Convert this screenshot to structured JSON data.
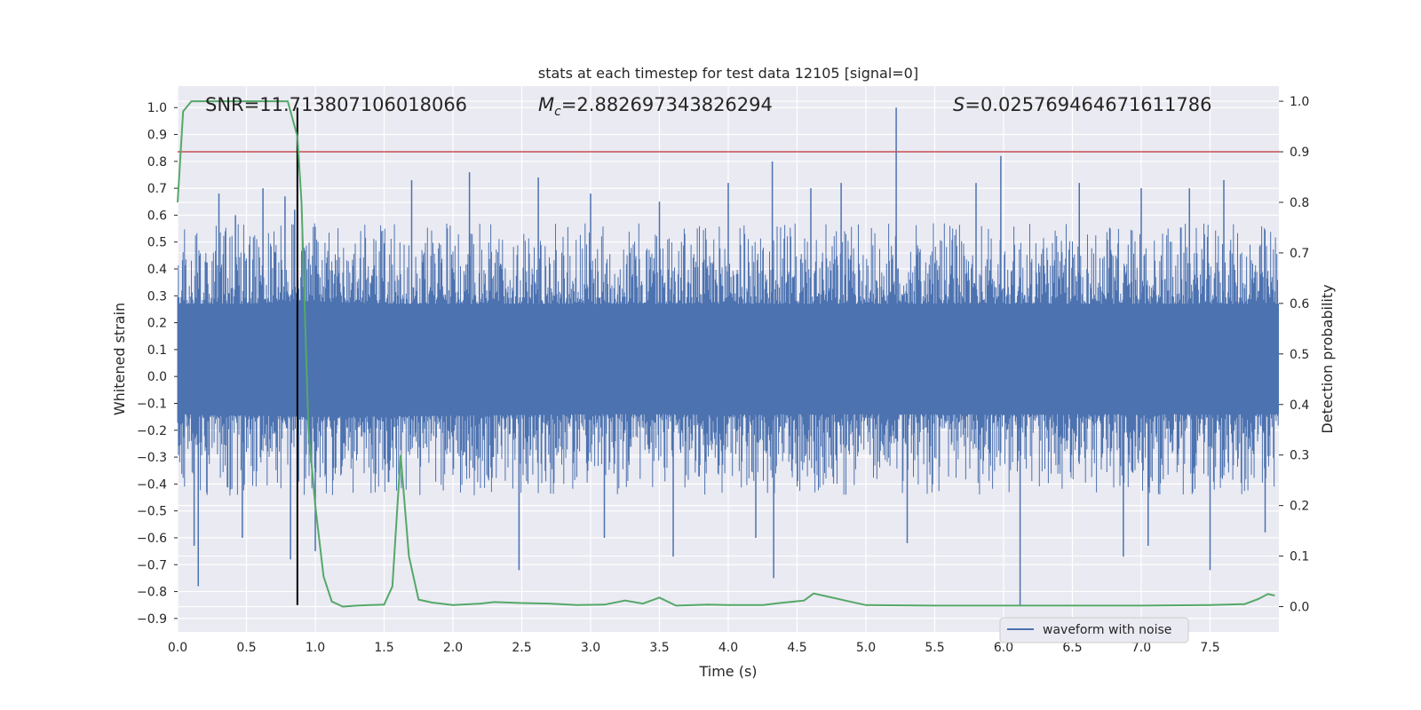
{
  "chart_data": {
    "type": "line",
    "title": "stats at each timestep for test data 12105 [signal=0]",
    "xlabel": "Time (s)",
    "ylabel": "Whitened strain",
    "ylabel_right": "Detection probability",
    "xlim": [
      0,
      8
    ],
    "ylim": [
      -0.95,
      1.08
    ],
    "ylim_right": [
      -0.05,
      1.03
    ],
    "x_ticks": [
      0.0,
      0.5,
      1.0,
      1.5,
      2.0,
      2.5,
      3.0,
      3.5,
      4.0,
      4.5,
      5.0,
      5.5,
      6.0,
      6.5,
      7.0,
      7.5
    ],
    "x_tick_labels": [
      "0.0",
      "0.5",
      "1.0",
      "1.5",
      "2.0",
      "2.5",
      "3.0",
      "3.5",
      "4.0",
      "4.5",
      "5.0",
      "5.5",
      "6.0",
      "6.5",
      "7.0",
      "7.5"
    ],
    "y_ticks": [
      1.0,
      0.9,
      0.8,
      0.7,
      0.6,
      0.5,
      0.4,
      0.3,
      0.2,
      0.1,
      0.0,
      -0.1,
      -0.2,
      -0.3,
      -0.4,
      -0.5,
      -0.6,
      -0.7,
      -0.8,
      -0.9
    ],
    "y_tick_labels": [
      "1.0",
      "0.9",
      "0.8",
      "0.7",
      "0.6",
      "0.5",
      "0.4",
      "0.3",
      "0.2",
      "0.1",
      "0.0",
      "−0.1",
      "−0.2",
      "−0.3",
      "−0.4",
      "−0.5",
      "−0.6",
      "−0.7",
      "−0.8",
      "−0.9"
    ],
    "y_right_ticks": [
      1.0,
      0.9,
      0.8,
      0.7,
      0.6,
      0.5,
      0.4,
      0.3,
      0.2,
      0.1,
      0.0
    ],
    "y_right_tick_labels": [
      "1.0",
      "0.9",
      "0.8",
      "0.7",
      "0.6",
      "0.5",
      "0.4",
      "0.3",
      "0.2",
      "0.1",
      "0.0"
    ],
    "grid": true,
    "legend_position": "bottom-right",
    "annotations": {
      "snr": "SNR=11.713807106018066",
      "mc_prefix": "M",
      "mc_sub": "c",
      "mc_value": "=2.882697343826294",
      "s_prefix": "S",
      "s_value": "=0.025769464671611786"
    },
    "colors": {
      "background": "#eaeaf2",
      "grid": "#ffffff",
      "waveform": "#4c72b0",
      "probability": "#55a868",
      "threshold": "#c44e52",
      "marker": "#000000",
      "text": "#262626"
    },
    "series": [
      {
        "name": "waveform with noise",
        "axis": "left",
        "style": "dense-noise",
        "envelope_upper": [
          [
            0.0,
            0.27
          ],
          [
            0.5,
            0.27
          ],
          [
            0.9,
            0.28
          ],
          [
            1.5,
            0.27
          ],
          [
            3.0,
            0.27
          ],
          [
            4.5,
            0.27
          ],
          [
            6.0,
            0.27
          ],
          [
            7.5,
            0.27
          ],
          [
            8.0,
            0.27
          ]
        ],
        "envelope_lower": [
          [
            0.0,
            -0.14
          ],
          [
            1.0,
            -0.15
          ],
          [
            3.0,
            -0.14
          ],
          [
            5.0,
            -0.14
          ],
          [
            7.0,
            -0.14
          ],
          [
            8.0,
            -0.14
          ]
        ],
        "spike_peaks": [
          [
            0.3,
            0.68
          ],
          [
            0.42,
            0.6
          ],
          [
            0.62,
            0.7
          ],
          [
            0.78,
            0.67
          ],
          [
            0.85,
            0.62
          ],
          [
            1.7,
            0.73
          ],
          [
            2.12,
            0.76
          ],
          [
            2.62,
            0.74
          ],
          [
            3.0,
            0.68
          ],
          [
            3.5,
            0.65
          ],
          [
            4.0,
            0.72
          ],
          [
            4.32,
            0.8
          ],
          [
            4.6,
            0.7
          ],
          [
            4.82,
            0.72
          ],
          [
            5.22,
            1.0
          ],
          [
            5.8,
            0.72
          ],
          [
            5.98,
            0.82
          ],
          [
            6.55,
            0.72
          ],
          [
            7.0,
            0.7
          ],
          [
            7.35,
            0.7
          ],
          [
            7.6,
            0.73
          ]
        ],
        "spike_troughs": [
          [
            0.12,
            -0.63
          ],
          [
            0.15,
            -0.78
          ],
          [
            0.47,
            -0.6
          ],
          [
            0.82,
            -0.68
          ],
          [
            1.0,
            -0.65
          ],
          [
            2.48,
            -0.72
          ],
          [
            3.1,
            -0.6
          ],
          [
            3.6,
            -0.67
          ],
          [
            4.2,
            -0.6
          ],
          [
            4.33,
            -0.75
          ],
          [
            5.3,
            -0.62
          ],
          [
            6.12,
            -0.85
          ],
          [
            6.87,
            -0.67
          ],
          [
            7.05,
            -0.63
          ],
          [
            7.5,
            -0.72
          ],
          [
            7.9,
            -0.58
          ]
        ]
      },
      {
        "name": "",
        "axis": "right",
        "style": "line",
        "points": [
          [
            0.0,
            0.8
          ],
          [
            0.04,
            0.98
          ],
          [
            0.1,
            1.0
          ],
          [
            0.5,
            1.0
          ],
          [
            0.8,
            1.0
          ],
          [
            0.87,
            0.93
          ],
          [
            0.9,
            0.8
          ],
          [
            0.95,
            0.35
          ],
          [
            1.0,
            0.2
          ],
          [
            1.06,
            0.06
          ],
          [
            1.12,
            0.01
          ],
          [
            1.2,
            0.0
          ],
          [
            1.3,
            0.002
          ],
          [
            1.4,
            0.003
          ],
          [
            1.5,
            0.004
          ],
          [
            1.56,
            0.04
          ],
          [
            1.62,
            0.3
          ],
          [
            1.68,
            0.1
          ],
          [
            1.75,
            0.014
          ],
          [
            1.85,
            0.008
          ],
          [
            2.0,
            0.003
          ],
          [
            2.2,
            0.006
          ],
          [
            2.3,
            0.009
          ],
          [
            2.5,
            0.007
          ],
          [
            2.7,
            0.006
          ],
          [
            2.9,
            0.003
          ],
          [
            3.1,
            0.004
          ],
          [
            3.25,
            0.012
          ],
          [
            3.38,
            0.006
          ],
          [
            3.5,
            0.018
          ],
          [
            3.62,
            0.002
          ],
          [
            3.85,
            0.004
          ],
          [
            4.0,
            0.003
          ],
          [
            4.25,
            0.003
          ],
          [
            4.4,
            0.008
          ],
          [
            4.55,
            0.012
          ],
          [
            4.62,
            0.026
          ],
          [
            4.72,
            0.02
          ],
          [
            4.85,
            0.012
          ],
          [
            5.0,
            0.003
          ],
          [
            5.5,
            0.002
          ],
          [
            6.0,
            0.002
          ],
          [
            6.5,
            0.002
          ],
          [
            7.0,
            0.002
          ],
          [
            7.5,
            0.003
          ],
          [
            7.75,
            0.005
          ],
          [
            7.85,
            0.015
          ],
          [
            7.92,
            0.025
          ],
          [
            7.97,
            0.022
          ]
        ]
      }
    ],
    "reference_lines": [
      {
        "kind": "horizontal",
        "axis": "right",
        "value": 0.9
      },
      {
        "kind": "vertical",
        "axis": "left",
        "value": 0.87,
        "from": -0.85,
        "to": 1.0
      }
    ]
  }
}
